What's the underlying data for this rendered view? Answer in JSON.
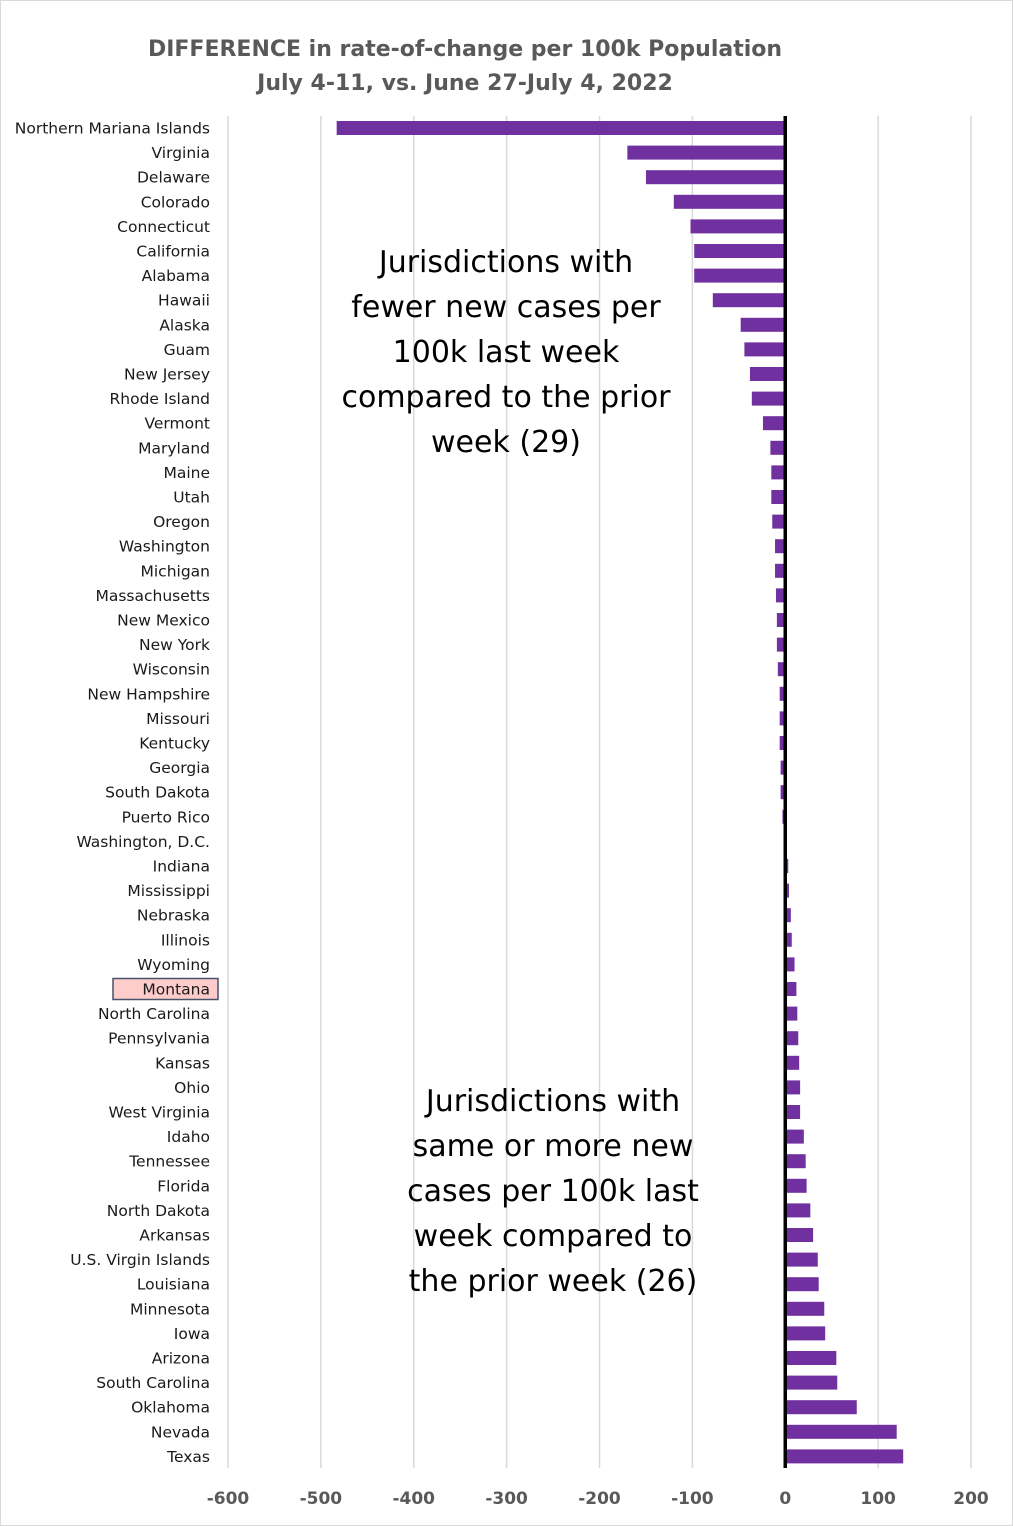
{
  "chart_data": {
    "type": "bar",
    "orientation": "horizontal",
    "title": [
      "DIFFERENCE in rate-of-change per 100k Population",
      "July 4-11, vs. June 27-July 4, 2022"
    ],
    "xlim": [
      -600,
      200
    ],
    "xticks": [
      -600,
      -500,
      -400,
      -300,
      -200,
      -100,
      0,
      100,
      200
    ],
    "xtick_labels": [
      "-600",
      "-500",
      "-400",
      "-300",
      "-200",
      "-100",
      "0",
      "100",
      "200"
    ],
    "grid": true,
    "bar_color": "#7030a0",
    "zero_line_color": "#000000",
    "highlight": {
      "category": "Montana",
      "fill": "#ffcccc",
      "stroke": "#44546a"
    },
    "categories": [
      "Northern Mariana Islands",
      "Virginia",
      "Delaware",
      "Colorado",
      "Connecticut",
      "California",
      "Alabama",
      "Hawaii",
      "Alaska",
      "Guam",
      "New Jersey",
      "Rhode Island",
      "Vermont",
      "Maryland",
      "Maine",
      "Utah",
      "Oregon",
      "Washington",
      "Michigan",
      "Massachusetts",
      "New Mexico",
      "New York",
      "Wisconsin",
      "New Hampshire",
      "Missouri",
      "Kentucky",
      "Georgia",
      "South Dakota",
      "Puerto Rico",
      "Washington, D.C.",
      "Indiana",
      "Mississippi",
      "Nebraska",
      "Illinois",
      "Wyoming",
      "Montana",
      "North Carolina",
      "Pennsylvania",
      "Kansas",
      "Ohio",
      "West Virginia",
      "Idaho",
      "Tennessee",
      "Florida",
      "North Dakota",
      "Arkansas",
      "U.S. Virgin Islands",
      "Louisiana",
      "Minnesota",
      "Iowa",
      "Arizona",
      "South Carolina",
      "Oklahoma",
      "Nevada",
      "Texas"
    ],
    "values": [
      -483,
      -170,
      -150,
      -120,
      -102,
      -98,
      -98,
      -78,
      -48,
      -44,
      -38,
      -36,
      -24,
      -16,
      -15,
      -15,
      -14,
      -11,
      -11,
      -10,
      -9,
      -9,
      -8,
      -6,
      -6,
      -6,
      -5,
      -5,
      -3,
      0,
      3,
      4,
      6,
      7,
      10,
      12,
      13,
      14,
      15,
      16,
      16,
      20,
      22,
      23,
      27,
      30,
      35,
      36,
      42,
      43,
      55,
      56,
      77,
      120,
      127
    ],
    "annotations": [
      {
        "lines": [
          "Jurisdictions with",
          "fewer new cases per",
          "100k last week",
          "compared to the prior",
          "week (29)"
        ]
      },
      {
        "lines": [
          "Jurisdictions with",
          "same or more new",
          "cases per 100k last",
          "week compared to",
          "the prior week (26)"
        ]
      }
    ]
  }
}
